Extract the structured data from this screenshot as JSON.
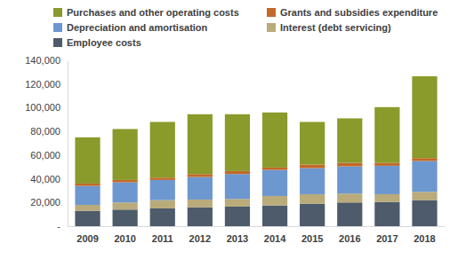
{
  "chart_data": {
    "type": "bar",
    "stacked": true,
    "grid": false,
    "categories": [
      "2009",
      "2010",
      "2011",
      "2012",
      "2013",
      "2014",
      "2015",
      "2016",
      "2017",
      "2018"
    ],
    "series": [
      {
        "name": "Employee costs",
        "color": "#4d5b6a",
        "values": [
          13000,
          14000,
          15000,
          16000,
          16500,
          17500,
          19000,
          20000,
          20500,
          22000
        ]
      },
      {
        "name": "Interest (debt servicing)",
        "color": "#b9ab7a",
        "values": [
          5000,
          6000,
          7000,
          6500,
          6500,
          8000,
          8000,
          7500,
          6500,
          7000
        ]
      },
      {
        "name": "Depreciation and amortisation",
        "color": "#6d97cf",
        "values": [
          16000,
          17000,
          17000,
          19000,
          21000,
          22000,
          22000,
          23000,
          24000,
          26000
        ]
      },
      {
        "name": "Grants and subsidies expenditure",
        "color": "#c2692a",
        "values": [
          2000,
          2000,
          2000,
          2500,
          2500,
          2000,
          3000,
          3000,
          2500,
          2500
        ]
      },
      {
        "name": "Purchases and other operating costs",
        "color": "#8a9a2b",
        "values": [
          39000,
          43000,
          47000,
          50500,
          48000,
          46500,
          36000,
          37500,
          47000,
          69000
        ]
      }
    ],
    "ylim": [
      0,
      140000
    ],
    "yticks": [
      {
        "value": 0,
        "label": "-"
      },
      {
        "value": 20000,
        "label": "20,000"
      },
      {
        "value": 40000,
        "label": "40,000"
      },
      {
        "value": 60000,
        "label": "60,000"
      },
      {
        "value": 80000,
        "label": "80,000"
      },
      {
        "value": 100000,
        "label": "100,000"
      },
      {
        "value": 120000,
        "label": "120,000"
      },
      {
        "value": 140000,
        "label": "140,000"
      }
    ]
  }
}
